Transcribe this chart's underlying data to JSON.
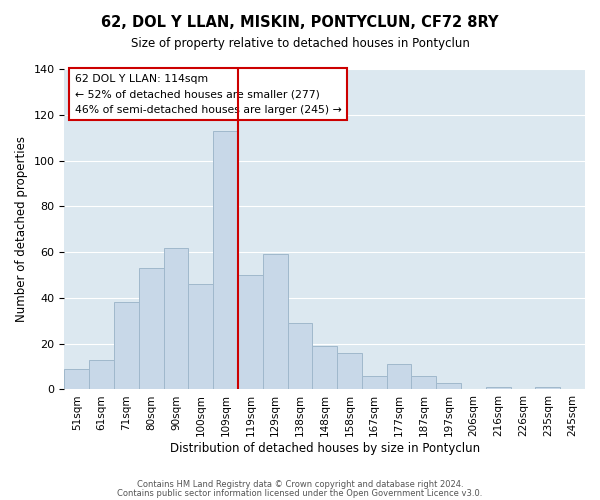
{
  "title": "62, DOL Y LLAN, MISKIN, PONTYCLUN, CF72 8RY",
  "subtitle": "Size of property relative to detached houses in Pontyclun",
  "xlabel": "Distribution of detached houses by size in Pontyclun",
  "ylabel": "Number of detached properties",
  "categories": [
    "51sqm",
    "61sqm",
    "71sqm",
    "80sqm",
    "90sqm",
    "100sqm",
    "109sqm",
    "119sqm",
    "129sqm",
    "138sqm",
    "148sqm",
    "158sqm",
    "167sqm",
    "177sqm",
    "187sqm",
    "197sqm",
    "206sqm",
    "216sqm",
    "226sqm",
    "235sqm",
    "245sqm"
  ],
  "values": [
    9,
    13,
    38,
    53,
    62,
    46,
    113,
    50,
    59,
    29,
    19,
    16,
    6,
    11,
    6,
    3,
    0,
    1,
    0,
    1,
    0
  ],
  "bar_color": "#c8d8e8",
  "bar_edge_color": "#a0b8cc",
  "vline_x_index": 6,
  "vline_color": "#cc0000",
  "ylim": [
    0,
    140
  ],
  "annotation_box_text_line1": "62 DOL Y LLAN: 114sqm",
  "annotation_box_text_line2": "← 52% of detached houses are smaller (277)",
  "annotation_box_text_line3": "46% of semi-detached houses are larger (245) →",
  "annotation_box_color": "#ffffff",
  "annotation_box_edge_color": "#cc0000",
  "footer1": "Contains HM Land Registry data © Crown copyright and database right 2024.",
  "footer2": "Contains public sector information licensed under the Open Government Licence v3.0.",
  "background_color": "#ffffff",
  "axes_bg_color": "#dce8f0",
  "grid_color": "#ffffff"
}
